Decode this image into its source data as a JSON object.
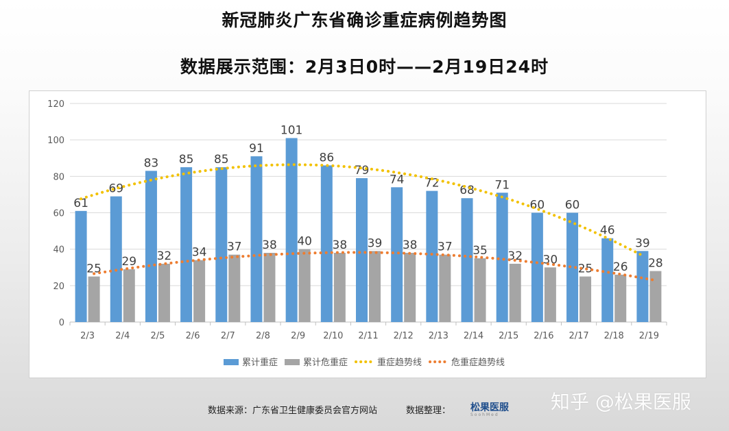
{
  "header": {
    "title": "新冠肺炎广东省确诊重症病例趋势图",
    "subtitle": "数据展示范围：2月3日0时——2月19日24时"
  },
  "chart_data": {
    "type": "bar",
    "categories": [
      "2/3",
      "2/4",
      "2/5",
      "2/6",
      "2/7",
      "2/8",
      "2/9",
      "2/10",
      "2/11",
      "2/12",
      "2/13",
      "2/14",
      "2/15",
      "2/16",
      "2/17",
      "2/18",
      "2/19"
    ],
    "series": [
      {
        "name": "累计重症",
        "type": "bar",
        "color": "#5b9bd5",
        "values": [
          61,
          69,
          83,
          85,
          85,
          91,
          101,
          86,
          79,
          74,
          72,
          68,
          71,
          60,
          60,
          46,
          39
        ]
      },
      {
        "name": "累计危重症",
        "type": "bar",
        "color": "#a5a5a5",
        "values": [
          25,
          29,
          32,
          34,
          37,
          38,
          40,
          38,
          39,
          38,
          37,
          35,
          32,
          30,
          25,
          26,
          28
        ]
      },
      {
        "name": "重症趋势线",
        "type": "trendline",
        "color": "#f2c100"
      },
      {
        "name": "危重症趋势线",
        "type": "trendline",
        "color": "#ed7d31"
      }
    ],
    "ylim": [
      0,
      120
    ],
    "yticks": [
      0,
      20,
      40,
      60,
      80,
      100,
      120
    ],
    "grid": true,
    "legend_position": "bottom"
  },
  "footer": {
    "source": "数据来源：广东省卫生健康委员会官方网站",
    "organizer": "数据整理：",
    "logo_text": "松果医服",
    "logo_sub": "SoohMed",
    "watermark": "知乎 @松果医服"
  }
}
